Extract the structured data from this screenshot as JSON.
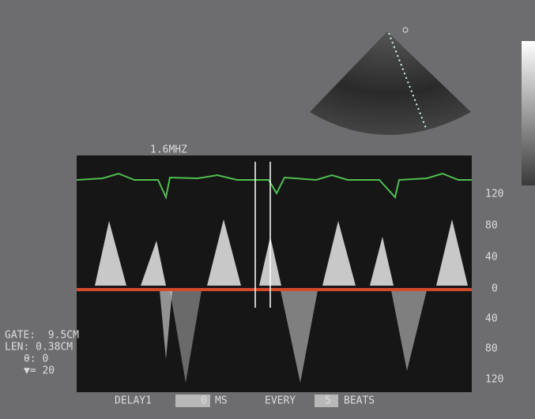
{
  "header": {
    "frequency": "1.6MHZ"
  },
  "scale": {
    "labels": [
      "120",
      "80",
      "40",
      "0",
      "40",
      "80",
      "120"
    ]
  },
  "info": {
    "gate": "GATE:  9.5CM",
    "length": "LEN: 0.38CM",
    "angle": "θ: 0",
    "marker": "▼= 20"
  },
  "footer": {
    "delay_label": "DELAY1",
    "delay_value": "0",
    "delay_unit": "MS",
    "every_label": "EVERY",
    "every_value": "5",
    "every_unit": "BEATS"
  }
}
